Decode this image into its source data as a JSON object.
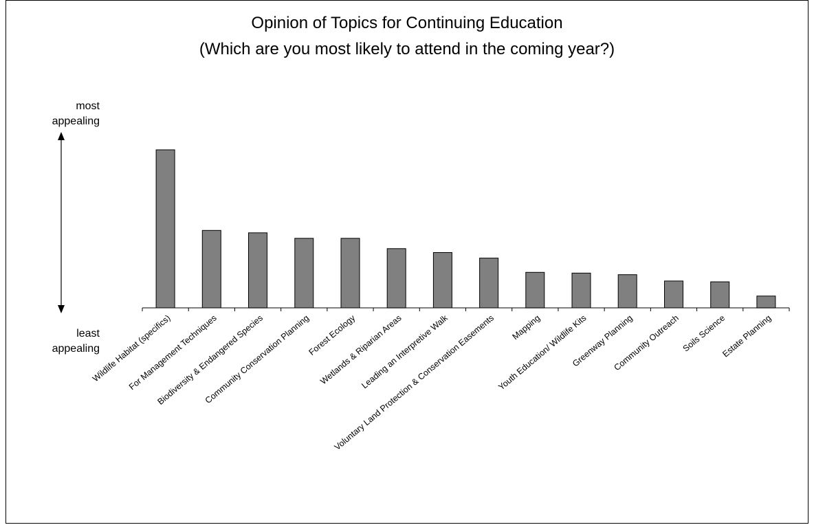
{
  "chart_data": {
    "type": "bar",
    "title": "Opinion of Topics for Continuing Education",
    "subtitle": "(Which are you most likely to attend in the coming year?)",
    "ylabel_top_1": "most",
    "ylabel_top_2": "appealing",
    "ylabel_bottom_1": "least",
    "ylabel_bottom_2": "appealing",
    "categories": [
      "Wildlife Habitat (specifics)",
      "For Management Techniques",
      "Biodiversity & Endangered Species",
      "Community Conservation Planning",
      "Forest Ecology",
      "Wetlands & Riparian Areas",
      "Leading an Interpretive Walk",
      "Voluntary Land Protection & Conservation Easements",
      "Mapping",
      "Youth Education/ Wildlife Kits",
      "Greenway Planning",
      "Community Outreach",
      "Soils Science",
      "Estate Planning"
    ],
    "values": [
      100,
      49,
      47.5,
      44,
      44,
      37.5,
      35,
      31.5,
      22.5,
      22,
      21,
      17,
      16.5,
      7.5
    ],
    "ylim": [
      0,
      100
    ],
    "bar_color": "#808080",
    "grid": false
  }
}
